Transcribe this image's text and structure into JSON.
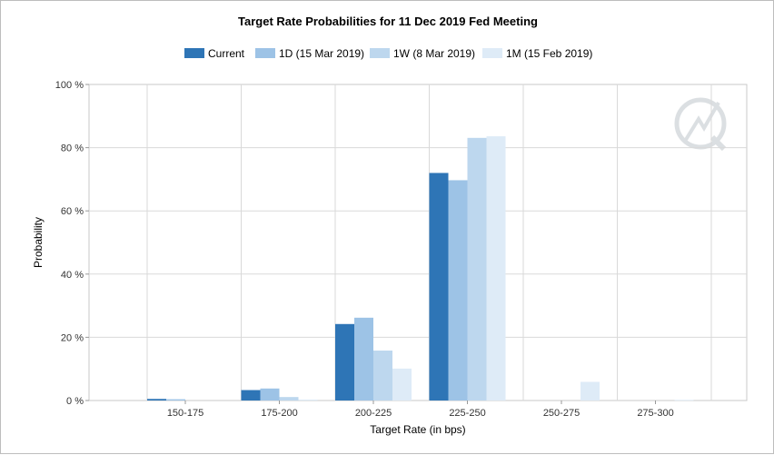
{
  "chart_data": {
    "type": "bar",
    "title": "Target Rate Probabilities for 11 Dec 2019 Fed Meeting",
    "xlabel": "Target Rate (in bps)",
    "ylabel": "Probability",
    "ylim": [
      0,
      100
    ],
    "yticks": [
      0,
      20,
      40,
      60,
      80,
      100
    ],
    "ytick_labels": [
      "0 %",
      "20 %",
      "40 %",
      "60 %",
      "80 %",
      "100 %"
    ],
    "grid": true,
    "legend_position": "top-center",
    "categories": [
      "150-175",
      "175-200",
      "200-225",
      "225-250",
      "250-275",
      "275-300"
    ],
    "series": [
      {
        "name": "Current",
        "color": "#2e75b6",
        "values": [
          0.5,
          3.3,
          24.2,
          72.0,
          0.0,
          0.0
        ]
      },
      {
        "name": "1D (15 Mar 2019)",
        "color": "#9dc3e6",
        "values": [
          0.4,
          3.8,
          26.2,
          69.7,
          0.0,
          0.0
        ]
      },
      {
        "name": "1W (8 Mar 2019)",
        "color": "#bdd7ee",
        "values": [
          0.0,
          1.1,
          15.8,
          83.1,
          0.0,
          0.0
        ]
      },
      {
        "name": "1M (15 Feb 2019)",
        "color": "#deebf7",
        "values": [
          0.0,
          0.3,
          10.1,
          83.6,
          5.9,
          0.2
        ]
      }
    ]
  },
  "watermark": {
    "name": "quikstrike-logo"
  }
}
